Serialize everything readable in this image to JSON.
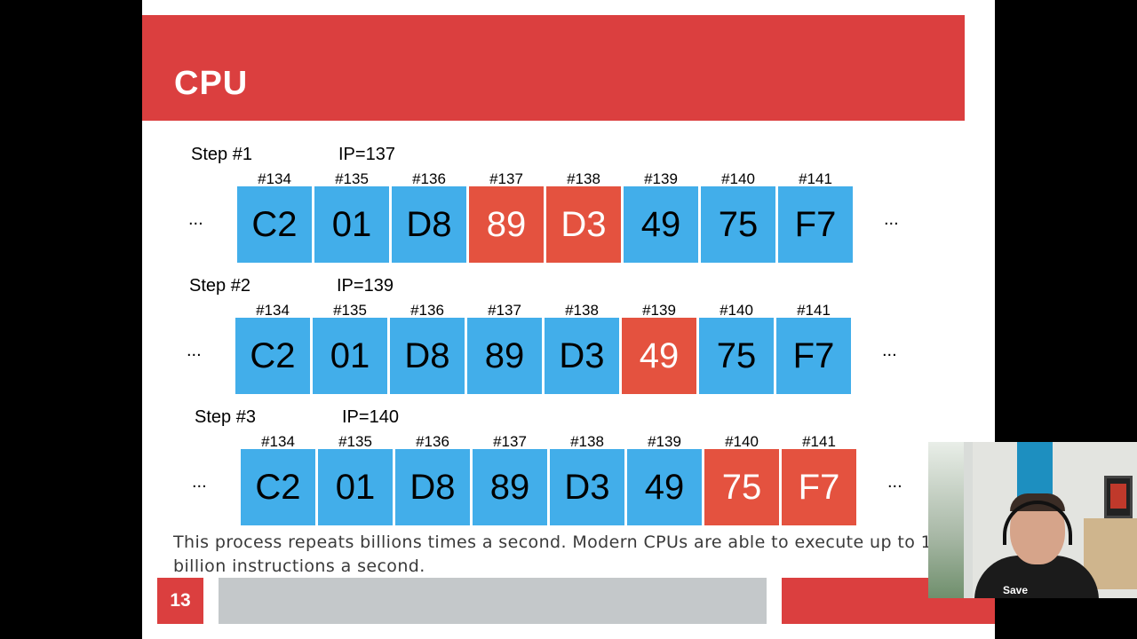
{
  "slide": {
    "title": "CPU",
    "page_number": "13",
    "body_text": "This process repeats billions times a second. Modern CPUs are able to execute up to 12 billion instructions a second.",
    "ellipsis": "..."
  },
  "steps": [
    {
      "label": "Step #1",
      "ip": "IP=137",
      "cells": [
        {
          "addr": "#134",
          "value": "C2",
          "highlight": false
        },
        {
          "addr": "#135",
          "value": "01",
          "highlight": false
        },
        {
          "addr": "#136",
          "value": "D8",
          "highlight": false
        },
        {
          "addr": "#137",
          "value": "89",
          "highlight": true
        },
        {
          "addr": "#138",
          "value": "D3",
          "highlight": true
        },
        {
          "addr": "#139",
          "value": "49",
          "highlight": false
        },
        {
          "addr": "#140",
          "value": "75",
          "highlight": false
        },
        {
          "addr": "#141",
          "value": "F7",
          "highlight": false
        }
      ]
    },
    {
      "label": "Step #2",
      "ip": "IP=139",
      "cells": [
        {
          "addr": "#134",
          "value": "C2",
          "highlight": false
        },
        {
          "addr": "#135",
          "value": "01",
          "highlight": false
        },
        {
          "addr": "#136",
          "value": "D8",
          "highlight": false
        },
        {
          "addr": "#137",
          "value": "89",
          "highlight": false
        },
        {
          "addr": "#138",
          "value": "D3",
          "highlight": false
        },
        {
          "addr": "#139",
          "value": "49",
          "highlight": true
        },
        {
          "addr": "#140",
          "value": "75",
          "highlight": false
        },
        {
          "addr": "#141",
          "value": "F7",
          "highlight": false
        }
      ]
    },
    {
      "label": "Step #3",
      "ip": "IP=140",
      "cells": [
        {
          "addr": "#134",
          "value": "C2",
          "highlight": false
        },
        {
          "addr": "#135",
          "value": "01",
          "highlight": false
        },
        {
          "addr": "#136",
          "value": "D8",
          "highlight": false
        },
        {
          "addr": "#137",
          "value": "89",
          "highlight": false
        },
        {
          "addr": "#138",
          "value": "D3",
          "highlight": false
        },
        {
          "addr": "#139",
          "value": "49",
          "highlight": false
        },
        {
          "addr": "#140",
          "value": "75",
          "highlight": true
        },
        {
          "addr": "#141",
          "value": "F7",
          "highlight": true
        }
      ]
    }
  ],
  "colors": {
    "header_red": "#db3f3f",
    "cell_blue": "#42aeea",
    "cell_red": "#e4523f",
    "footer_gray": "#c4c8ca"
  },
  "webcam": {
    "shirt_text": "Save"
  }
}
